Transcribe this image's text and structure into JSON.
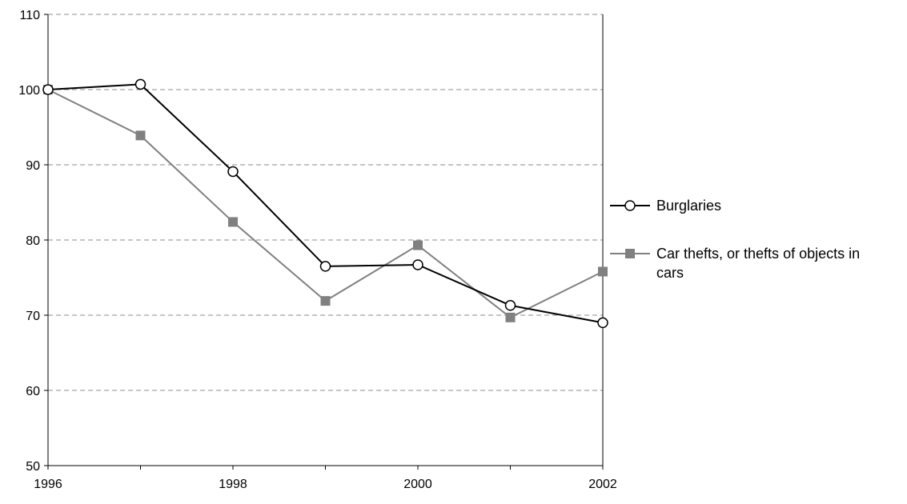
{
  "chart_data": {
    "type": "line",
    "x": [
      1996,
      1997,
      1998,
      1999,
      2000,
      2001,
      2002
    ],
    "x_ticks": [
      "1996",
      "1998",
      "2000",
      "2002"
    ],
    "y_ticks": [
      "50",
      "60",
      "70",
      "80",
      "90",
      "100",
      "110"
    ],
    "xlim": [
      1996,
      2002
    ],
    "ylim": [
      50,
      110
    ],
    "grid": "horizontal dashed",
    "legend_position": "right",
    "series": [
      {
        "name": "Burglaries",
        "values": [
          100,
          100.7,
          89.1,
          76.5,
          76.7,
          71.3,
          69.0
        ],
        "color": "#000000",
        "marker": "open-circle"
      },
      {
        "name": "Car thefts, or thefts of objects in cars",
        "values": [
          100,
          93.9,
          82.4,
          71.9,
          79.3,
          69.7,
          75.8
        ],
        "color": "#808080",
        "marker": "filled-square"
      }
    ]
  }
}
